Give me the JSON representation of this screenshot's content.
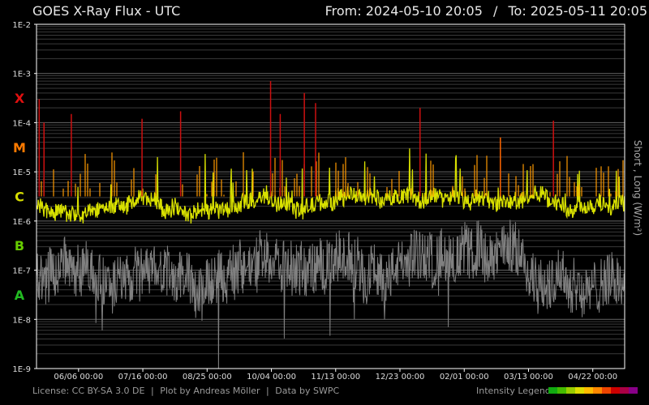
{
  "header": {
    "title": "GOES X-Ray Flux - UTC",
    "from_label": "From:",
    "from_value": "2024-05-10 20:05",
    "separator": "/",
    "to_label": "To:",
    "to_value": "2025-05-11 20:05"
  },
  "footer": {
    "license": "License: CC BY-SA 3.0 DE",
    "plot_by": "Plot by Andreas Möller",
    "data_by": "Data by SWPC",
    "separator": "|"
  },
  "legend": {
    "label": "Intensity Legend",
    "colors": [
      "#11aa11",
      "#44bb00",
      "#99cc00",
      "#dddd00",
      "#ffbb00",
      "#ff8800",
      "#ee4400",
      "#cc0000",
      "#aa0044",
      "#880088"
    ]
  },
  "chart_data": {
    "type": "line",
    "y_scale": "log",
    "y_axis_label": "Short , Long (W/m²)",
    "y_ticks": [
      "1E-2",
      "1E-3",
      "1E-4",
      "1E-5",
      "1E-6",
      "1E-7",
      "1E-8",
      "1E-9"
    ],
    "ylim": [
      "1E-9",
      "1E-2"
    ],
    "x_ticks": [
      "06/06 00:00",
      "07/16 00:00",
      "08/25 00:00",
      "10/04 00:00",
      "11/13 00:00",
      "12/23 00:00",
      "02/01 00:00",
      "03/13 00:00",
      "04/22 00:00"
    ],
    "xlim": [
      "2024-05-10 20:05",
      "2025-05-11 20:05"
    ],
    "classes": [
      {
        "name": "X",
        "color": "#e01010",
        "position": 1.5
      },
      {
        "name": "M",
        "color": "#ff7a00",
        "position": 2.5
      },
      {
        "name": "C",
        "color": "#d6dd00",
        "position": 3.5
      },
      {
        "name": "B",
        "color": "#66cc00",
        "position": 4.5
      },
      {
        "name": "A",
        "color": "#22bb22",
        "position": 5.5
      }
    ],
    "grid": true,
    "series": [
      {
        "name": "Long",
        "color": "#d8e000",
        "baseline_exp": -5.7,
        "band_exp": [
          -6.4,
          -5.3
        ]
      },
      {
        "name": "Short",
        "color": "#808080",
        "baseline_exp": -7.2,
        "band_exp": [
          -8.5,
          -6.2
        ]
      }
    ],
    "notable_peaks": [
      {
        "x": "2024-05-12",
        "y": "3E-4"
      },
      {
        "x": "2024-05-15",
        "y": "1E-4"
      },
      {
        "x": "2024-06-01",
        "y": "1.5E-4"
      },
      {
        "x": "2024-07-15",
        "y": "1.2E-4"
      },
      {
        "x": "2024-08-08",
        "y": "1.7E-4"
      },
      {
        "x": "2024-10-03",
        "y": "7E-4"
      },
      {
        "x": "2024-10-09",
        "y": "1.5E-4"
      },
      {
        "x": "2024-10-24",
        "y": "4E-4"
      },
      {
        "x": "2024-10-31",
        "y": "2.5E-4"
      },
      {
        "x": "2025-01-04",
        "y": "2E-4"
      },
      {
        "x": "2025-02-23",
        "y": "5E-5"
      },
      {
        "x": "2025-03-28",
        "y": "1.1E-4"
      }
    ]
  }
}
